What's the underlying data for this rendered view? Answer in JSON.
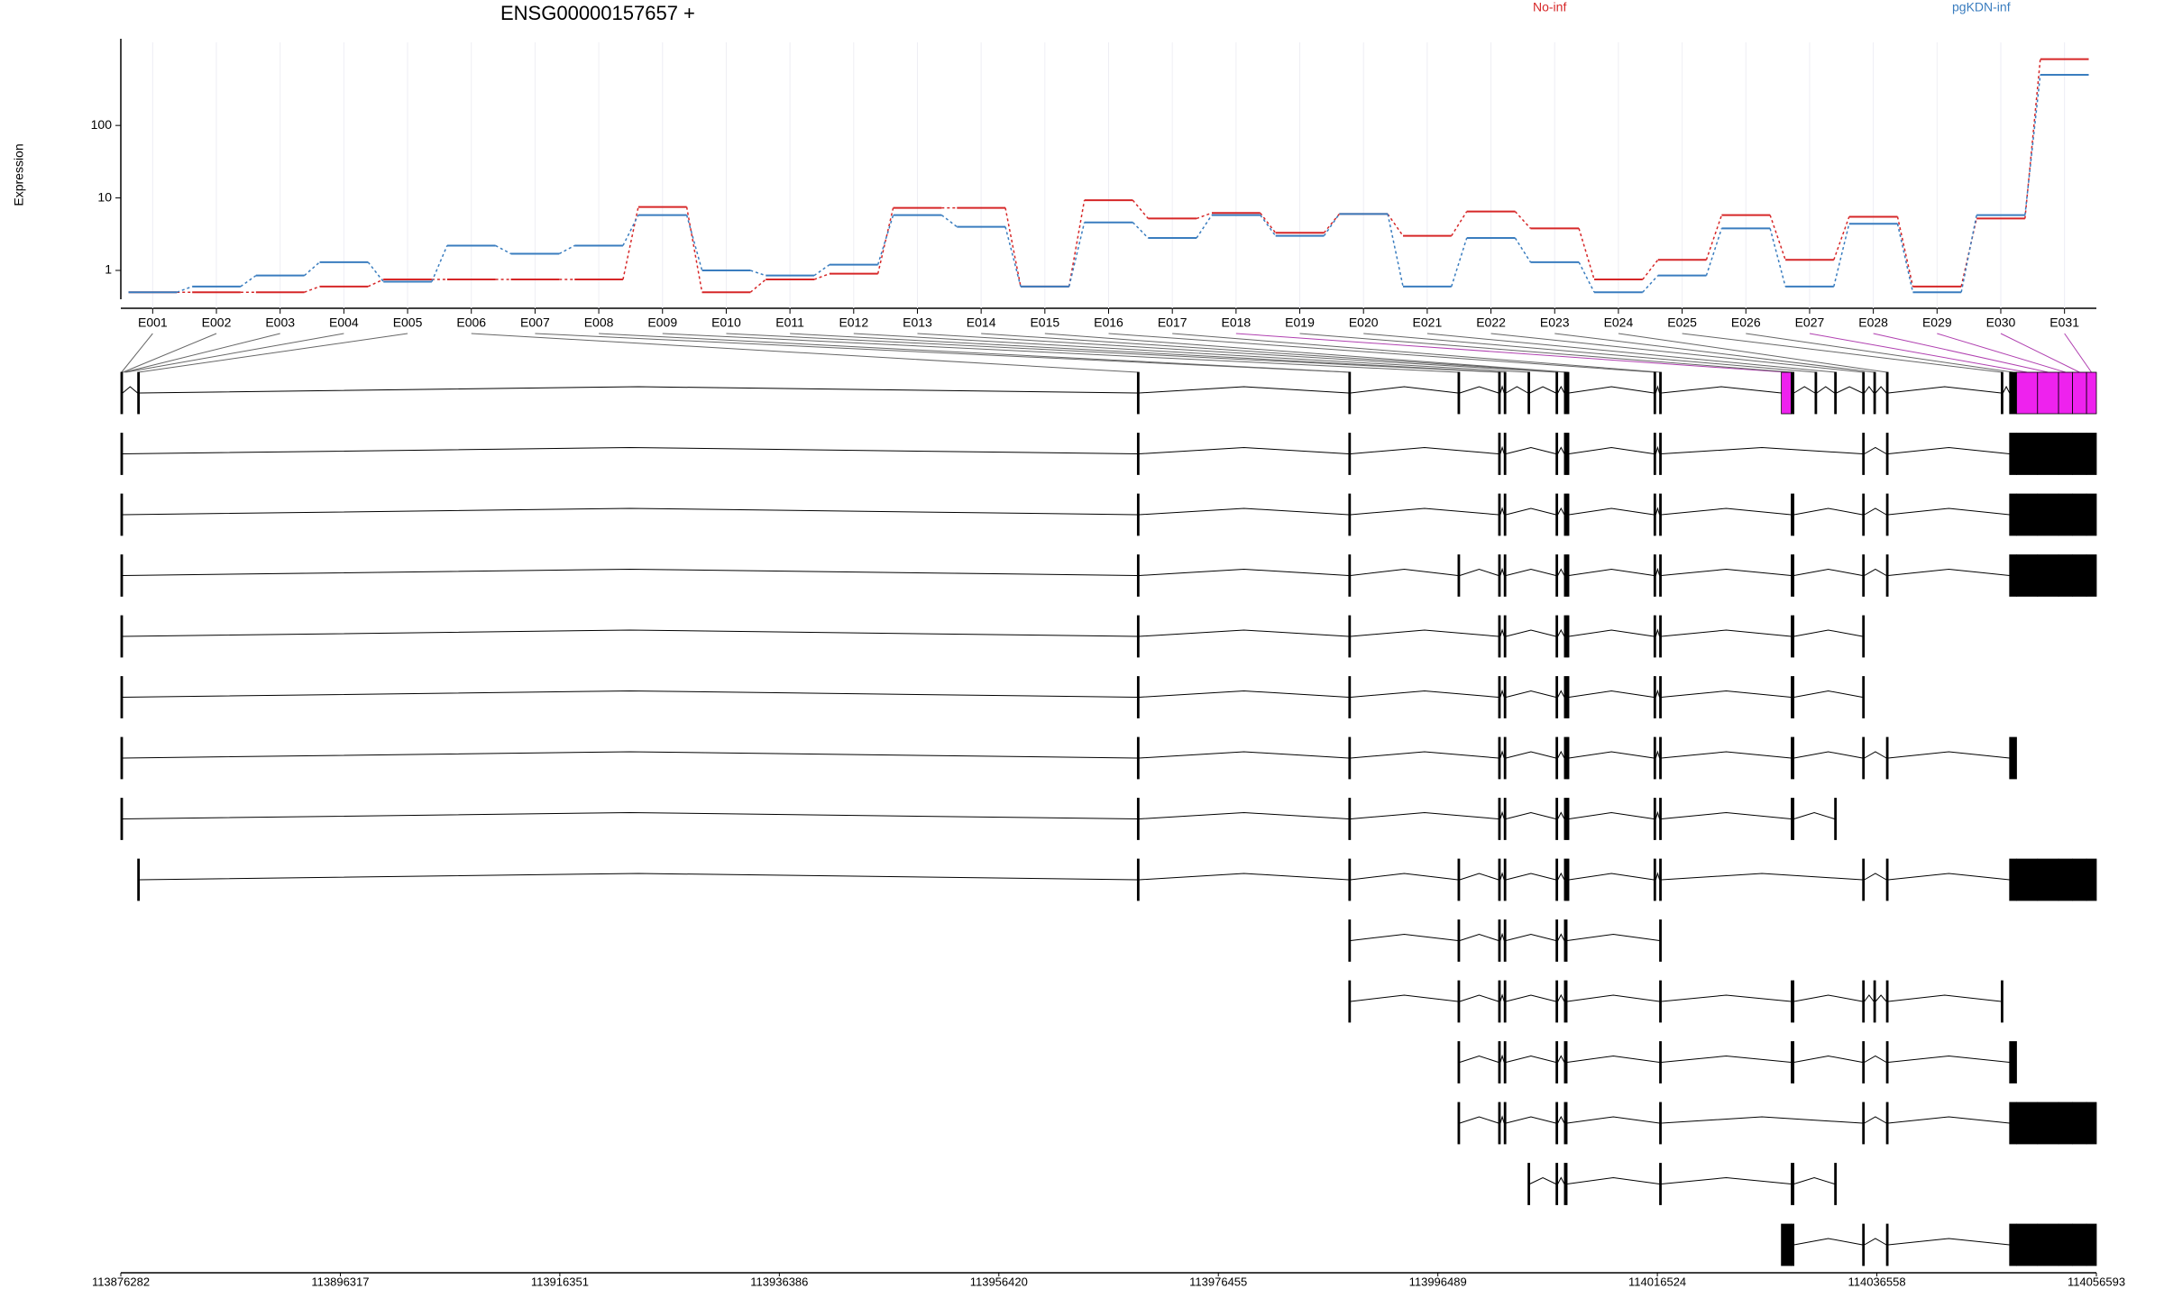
{
  "chart_data": {
    "type": "line",
    "title": "ENSG00000157657 +",
    "ylabel": "Expression",
    "categories": [
      "E001",
      "E002",
      "E003",
      "E004",
      "E005",
      "E006",
      "E007",
      "E008",
      "E009",
      "E010",
      "E011",
      "E012",
      "E013",
      "E014",
      "E015",
      "E016",
      "E017",
      "E018",
      "E019",
      "E020",
      "E021",
      "E022",
      "E023",
      "E024",
      "E025",
      "E026",
      "E027",
      "E028",
      "E029",
      "E030",
      "E031"
    ],
    "series": [
      {
        "name": "No-inf",
        "color": "#d62728",
        "values": [
          0.5,
          0.5,
          0.5,
          0.6,
          0.75,
          0.75,
          0.75,
          0.75,
          7.5,
          0.5,
          0.75,
          0.9,
          7.3,
          7.3,
          0.6,
          9.3,
          5.2,
          6.2,
          3.3,
          6.0,
          3.0,
          6.5,
          3.8,
          0.75,
          1.4,
          5.8,
          1.4,
          5.5,
          0.6,
          5.2,
          820
        ]
      },
      {
        "name": "pgKDN-inf",
        "color": "#3a7dbf",
        "values": [
          0.5,
          0.6,
          0.85,
          1.3,
          0.7,
          2.2,
          1.7,
          2.2,
          5.8,
          1.0,
          0.85,
          1.2,
          5.8,
          4.0,
          0.6,
          4.6,
          2.8,
          5.8,
          3.0,
          6.0,
          0.6,
          2.8,
          1.3,
          0.5,
          0.85,
          3.8,
          0.6,
          4.4,
          0.5,
          5.8,
          500
        ]
      }
    ],
    "log_scale": true,
    "grid": true,
    "ylim": [
      0.4,
      1400
    ],
    "yticks": [
      1,
      10,
      100
    ],
    "xlim": [
      113876282,
      114056593
    ],
    "xticks": [
      113876282,
      113896317,
      113916351,
      113936386,
      113956420,
      113976455,
      113996489,
      114016524,
      114036558,
      114056593
    ],
    "exons": [
      {
        "start": 113876282,
        "end": 113876410
      },
      {
        "start": 113876410,
        "end": 113876538
      },
      {
        "start": 113876538,
        "end": 113876665
      },
      {
        "start": 113876665,
        "end": 113876793
      },
      {
        "start": 113877815,
        "end": 113877943
      },
      {
        "start": 113969058,
        "end": 113969185
      },
      {
        "start": 113988354,
        "end": 113988481
      },
      {
        "start": 113988481,
        "end": 113988609
      },
      {
        "start": 113998321,
        "end": 113998449
      },
      {
        "start": 114002027,
        "end": 114002155
      },
      {
        "start": 114002539,
        "end": 114002666
      },
      {
        "start": 114004711,
        "end": 114004839
      },
      {
        "start": 114007267,
        "end": 114007395
      },
      {
        "start": 114008033,
        "end": 114008289
      },
      {
        "start": 114008289,
        "end": 114008417
      },
      {
        "start": 114016212,
        "end": 114016340
      },
      {
        "start": 114016723,
        "end": 114016851
      },
      {
        "start": 114027841,
        "end": 114028735
      },
      {
        "start": 114028735,
        "end": 114028991
      },
      {
        "start": 114030908,
        "end": 114031036
      },
      {
        "start": 114032697,
        "end": 114032825
      },
      {
        "start": 114035253,
        "end": 114035381
      },
      {
        "start": 114036275,
        "end": 114036403
      },
      {
        "start": 114037426,
        "end": 114037554
      },
      {
        "start": 114047904,
        "end": 114048032
      },
      {
        "start": 114048671,
        "end": 114049308
      },
      {
        "start": 114049308,
        "end": 114051225
      },
      {
        "start": 114051225,
        "end": 114053141
      },
      {
        "start": 114053141,
        "end": 114054419
      },
      {
        "start": 114054419,
        "end": 114055697
      },
      {
        "start": 114055697,
        "end": 114056593
      }
    ],
    "highlight": [
      17,
      26,
      27,
      28,
      29,
      30
    ],
    "highlight_color": "#ee22ee",
    "transcripts": [
      [
        0,
        4,
        5,
        6,
        8,
        9,
        10,
        11,
        12,
        13,
        14,
        15,
        16,
        17,
        18,
        19,
        20,
        21,
        22,
        23,
        24,
        25,
        26,
        27,
        28,
        29,
        30
      ],
      [
        0,
        5,
        6,
        9,
        10,
        12,
        13,
        14,
        15,
        16,
        21,
        23,
        25,
        26,
        27,
        28,
        29,
        30
      ],
      [
        0,
        5,
        6,
        9,
        10,
        12,
        13,
        14,
        15,
        16,
        18,
        21,
        23,
        25,
        26,
        27,
        28,
        29,
        30
      ],
      [
        0,
        5,
        6,
        8,
        9,
        10,
        12,
        13,
        14,
        15,
        16,
        18,
        21,
        23,
        25,
        26,
        27,
        28,
        29,
        30
      ],
      [
        0,
        5,
        6,
        9,
        10,
        12,
        13,
        14,
        15,
        16,
        18,
        21
      ],
      [
        0,
        5,
        6,
        9,
        10,
        12,
        13,
        14,
        15,
        16,
        18,
        21
      ],
      [
        0,
        5,
        6,
        9,
        10,
        12,
        13,
        14,
        15,
        16,
        18,
        21,
        23,
        25
      ],
      [
        0,
        5,
        6,
        9,
        10,
        12,
        13,
        14,
        15,
        16,
        18,
        20
      ],
      [
        4,
        5,
        6,
        8,
        9,
        10,
        12,
        13,
        14,
        15,
        16,
        21,
        23,
        25,
        26,
        27,
        28,
        29,
        30
      ],
      [
        6,
        8,
        9,
        10,
        12,
        13,
        16
      ],
      [
        6,
        8,
        9,
        10,
        12,
        13,
        16,
        18,
        21,
        22,
        23,
        24
      ],
      [
        8,
        9,
        10,
        12,
        13,
        16,
        18,
        21,
        23,
        25
      ],
      [
        8,
        9,
        10,
        12,
        13,
        16,
        21,
        23,
        25,
        26,
        27,
        28,
        29,
        30
      ],
      [
        11,
        12,
        13,
        16,
        18,
        20
      ],
      [
        17,
        18,
        21,
        23,
        25,
        26,
        27,
        28,
        29,
        30
      ]
    ]
  }
}
